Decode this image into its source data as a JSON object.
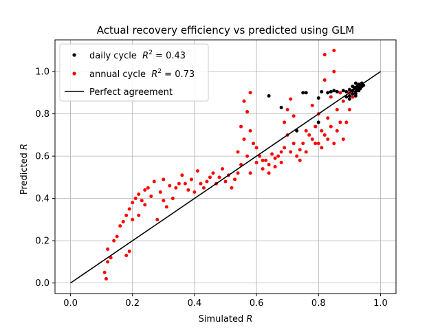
{
  "chart_data": {
    "type": "scatter",
    "title": "Actual recovery efficiency vs predicted using GLM",
    "xlabel_prefix": "Simulated ",
    "xlabel_var": "R",
    "ylabel_prefix": "Predicted ",
    "ylabel_var": "R",
    "xlim": [
      -0.05,
      1.05
    ],
    "ylim": [
      -0.05,
      1.15
    ],
    "xticks": [
      0.0,
      0.2,
      0.4,
      0.6,
      0.8,
      1.0
    ],
    "xtick_labels": [
      "0.0",
      "0.2",
      "0.4",
      "0.6",
      "0.8",
      "1.0"
    ],
    "yticks": [
      0.0,
      0.2,
      0.4,
      0.6,
      0.8,
      1.0
    ],
    "ytick_labels": [
      "0.0",
      "0.2",
      "0.4",
      "0.6",
      "0.8",
      "1.0"
    ],
    "grid": true,
    "legend_position": "top-left",
    "series": [
      {
        "legend_main": "daily cycle  ",
        "legend_r2_label": "R",
        "legend_r2_value": " = 0.43",
        "color": "#000000",
        "marker": "circle",
        "points": [
          [
            0.64,
            0.885
          ],
          [
            0.68,
            0.83
          ],
          [
            0.73,
            0.72
          ],
          [
            0.75,
            0.9
          ],
          [
            0.76,
            0.9
          ],
          [
            0.8,
            0.875
          ],
          [
            0.8,
            0.76
          ],
          [
            0.81,
            0.905
          ],
          [
            0.83,
            0.9
          ],
          [
            0.84,
            0.905
          ],
          [
            0.85,
            0.91
          ],
          [
            0.86,
            0.905
          ],
          [
            0.87,
            0.9
          ],
          [
            0.88,
            0.91
          ],
          [
            0.89,
            0.905
          ],
          [
            0.89,
            0.88
          ],
          [
            0.9,
            0.9
          ],
          [
            0.9,
            0.885
          ],
          [
            0.9,
            0.87
          ],
          [
            0.91,
            0.91
          ],
          [
            0.91,
            0.895
          ],
          [
            0.91,
            0.88
          ],
          [
            0.92,
            0.92
          ],
          [
            0.92,
            0.905
          ],
          [
            0.92,
            0.895
          ],
          [
            0.92,
            0.885
          ],
          [
            0.925,
            0.93
          ],
          [
            0.925,
            0.915
          ],
          [
            0.93,
            0.94
          ],
          [
            0.93,
            0.925
          ],
          [
            0.93,
            0.91
          ],
          [
            0.935,
            0.935
          ],
          [
            0.935,
            0.92
          ],
          [
            0.94,
            0.93
          ],
          [
            0.94,
            0.945
          ],
          [
            0.945,
            0.935
          ],
          [
            0.91,
            0.93
          ],
          [
            0.915,
            0.925
          ],
          [
            0.9,
            0.915
          ],
          [
            0.92,
            0.945
          ]
        ]
      },
      {
        "legend_main": "annual cycle  ",
        "legend_r2_label": "R",
        "legend_r2_value": " = 0.73",
        "color": "#ff0000",
        "marker": "circle",
        "points": [
          [
            0.11,
            0.05
          ],
          [
            0.115,
            0.02
          ],
          [
            0.12,
            0.1
          ],
          [
            0.12,
            0.16
          ],
          [
            0.13,
            0.12
          ],
          [
            0.14,
            0.2
          ],
          [
            0.15,
            0.22
          ],
          [
            0.16,
            0.27
          ],
          [
            0.17,
            0.29
          ],
          [
            0.18,
            0.32
          ],
          [
            0.18,
            0.13
          ],
          [
            0.19,
            0.35
          ],
          [
            0.19,
            0.15
          ],
          [
            0.2,
            0.3
          ],
          [
            0.2,
            0.38
          ],
          [
            0.21,
            0.4
          ],
          [
            0.22,
            0.32
          ],
          [
            0.22,
            0.42
          ],
          [
            0.23,
            0.39
          ],
          [
            0.24,
            0.44
          ],
          [
            0.24,
            0.37
          ],
          [
            0.25,
            0.45
          ],
          [
            0.26,
            0.41
          ],
          [
            0.27,
            0.48
          ],
          [
            0.28,
            0.3
          ],
          [
            0.29,
            0.43
          ],
          [
            0.3,
            0.49
          ],
          [
            0.3,
            0.39
          ],
          [
            0.31,
            0.36
          ],
          [
            0.32,
            0.46
          ],
          [
            0.33,
            0.4
          ],
          [
            0.34,
            0.45
          ],
          [
            0.35,
            0.47
          ],
          [
            0.36,
            0.51
          ],
          [
            0.37,
            0.47
          ],
          [
            0.38,
            0.44
          ],
          [
            0.39,
            0.49
          ],
          [
            0.4,
            0.43
          ],
          [
            0.41,
            0.53
          ],
          [
            0.42,
            0.47
          ],
          [
            0.43,
            0.45
          ],
          [
            0.44,
            0.48
          ],
          [
            0.45,
            0.5
          ],
          [
            0.46,
            0.52
          ],
          [
            0.47,
            0.47
          ],
          [
            0.48,
            0.5
          ],
          [
            0.49,
            0.54
          ],
          [
            0.5,
            0.48
          ],
          [
            0.51,
            0.51
          ],
          [
            0.52,
            0.45
          ],
          [
            0.53,
            0.49
          ],
          [
            0.54,
            0.52
          ],
          [
            0.54,
            0.62
          ],
          [
            0.55,
            0.74
          ],
          [
            0.55,
            0.56
          ],
          [
            0.56,
            0.86
          ],
          [
            0.56,
            0.68
          ],
          [
            0.57,
            0.81
          ],
          [
            0.57,
            0.6
          ],
          [
            0.58,
            0.9
          ],
          [
            0.58,
            0.72
          ],
          [
            0.58,
            0.52
          ],
          [
            0.59,
            0.66
          ],
          [
            0.6,
            0.57
          ],
          [
            0.61,
            0.6
          ],
          [
            0.62,
            0.54
          ],
          [
            0.63,
            0.58
          ],
          [
            0.64,
            0.56
          ],
          [
            0.65,
            0.61
          ],
          [
            0.66,
            0.55
          ],
          [
            0.67,
            0.6
          ],
          [
            0.68,
            0.62
          ],
          [
            0.69,
            0.64
          ],
          [
            0.69,
            0.76
          ],
          [
            0.7,
            0.82
          ],
          [
            0.7,
            0.7
          ],
          [
            0.71,
            0.87
          ],
          [
            0.71,
            0.62
          ],
          [
            0.72,
            0.79
          ],
          [
            0.72,
            0.66
          ],
          [
            0.73,
            0.6
          ],
          [
            0.74,
            0.63
          ],
          [
            0.75,
            0.66
          ],
          [
            0.76,
            0.62
          ],
          [
            0.77,
            0.7
          ],
          [
            0.78,
            0.68
          ],
          [
            0.78,
            0.84
          ],
          [
            0.79,
            0.74
          ],
          [
            0.8,
            0.66
          ],
          [
            0.8,
            0.8
          ],
          [
            0.81,
            0.72
          ],
          [
            0.81,
            0.64
          ],
          [
            0.82,
            0.7
          ],
          [
            0.82,
            1.08
          ],
          [
            0.82,
            0.96
          ],
          [
            0.83,
            0.78
          ],
          [
            0.83,
            0.68
          ],
          [
            0.84,
            0.74
          ],
          [
            0.84,
            0.88
          ],
          [
            0.85,
            1.1
          ],
          [
            0.85,
            1.0
          ],
          [
            0.85,
            0.66
          ],
          [
            0.86,
            0.82
          ],
          [
            0.86,
            0.72
          ],
          [
            0.87,
            0.9
          ],
          [
            0.87,
            0.76
          ],
          [
            0.88,
            0.68
          ],
          [
            0.88,
            0.86
          ],
          [
            0.89,
            0.76
          ],
          [
            0.9,
            0.82
          ],
          [
            0.9,
            0.9
          ],
          [
            0.91,
            0.88
          ],
          [
            0.6,
            0.64
          ],
          [
            0.62,
            0.58
          ],
          [
            0.64,
            0.52
          ],
          [
            0.66,
            0.59
          ],
          [
            0.68,
            0.57
          ],
          [
            0.74,
            0.58
          ],
          [
            0.76,
            0.72
          ],
          [
            0.79,
            0.66
          ]
        ]
      }
    ],
    "line": {
      "name": "Perfect agreement",
      "color": "#000000",
      "x": [
        0.0,
        1.0
      ],
      "y": [
        0.0,
        1.0
      ]
    }
  }
}
